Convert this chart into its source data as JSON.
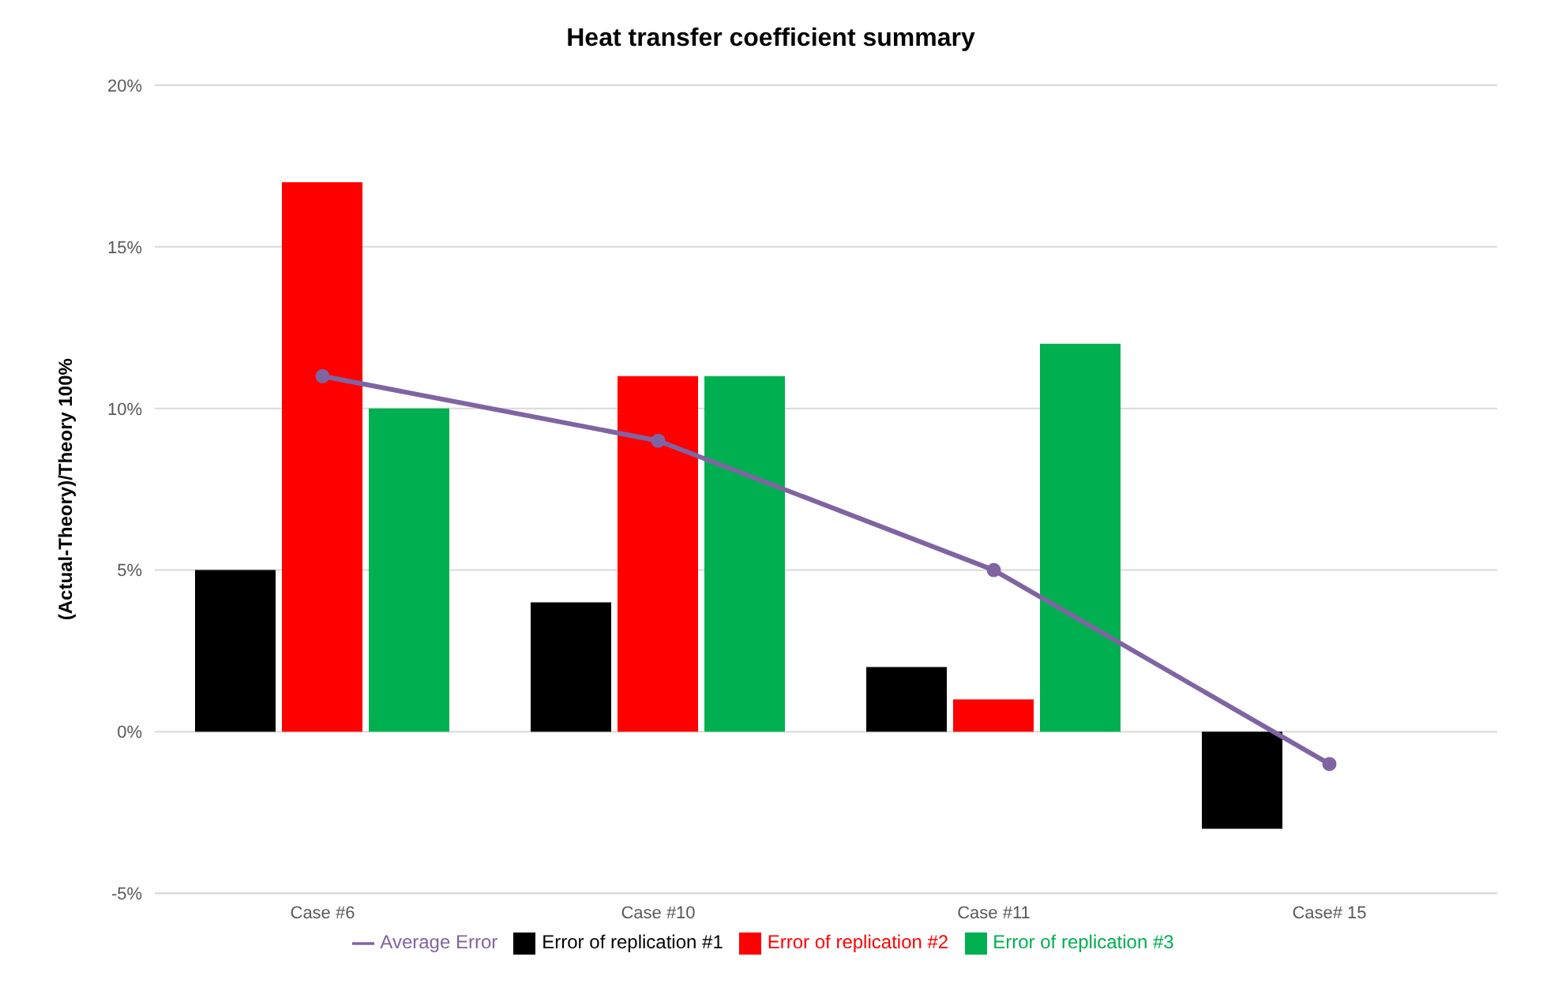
{
  "chart_data": {
    "type": "bar",
    "title": "Heat transfer coefficient summary",
    "ylabel": "(Actual-Theory)/Theory 100%",
    "categories": [
      "Case #6",
      "Case #10",
      "Case #11",
      "Case# 15"
    ],
    "series": [
      {
        "name": "Error of replication #1",
        "color": "#000000",
        "values": [
          5,
          4,
          2,
          -3
        ]
      },
      {
        "name": "Error of replication #2",
        "color": "#ff0000",
        "values": [
          17,
          11,
          1,
          null
        ]
      },
      {
        "name": "Error of replication #3",
        "color": "#00b050",
        "values": [
          10,
          11,
          12,
          null
        ]
      },
      {
        "name": "Average Error",
        "type": "line",
        "color": "#8064a2",
        "values": [
          11,
          9,
          5,
          -1
        ],
        "marker": "circle"
      }
    ],
    "ylim": [
      -5,
      20
    ],
    "yticks": [
      {
        "value": -5,
        "label": "-5%"
      },
      {
        "value": 0,
        "label": "0%"
      },
      {
        "value": 5,
        "label": "5%"
      },
      {
        "value": 10,
        "label": "10%"
      },
      {
        "value": 15,
        "label": "15%"
      },
      {
        "value": 20,
        "label": "20%"
      }
    ],
    "grid": "y",
    "legend": "bottom"
  }
}
